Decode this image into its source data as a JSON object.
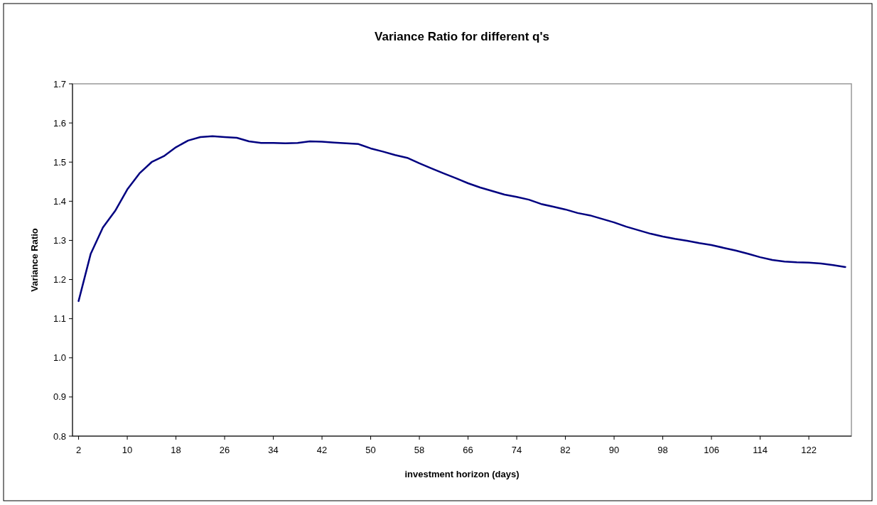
{
  "chart_data": {
    "type": "line",
    "title": "Variance Ratio for different q's",
    "xlabel": "investment horizon (days)",
    "ylabel": "Variance Ratio",
    "x": [
      2,
      4,
      6,
      8,
      10,
      12,
      14,
      16,
      18,
      20,
      22,
      24,
      26,
      28,
      30,
      32,
      34,
      36,
      38,
      40,
      42,
      44,
      46,
      48,
      50,
      52,
      54,
      56,
      58,
      60,
      62,
      64,
      66,
      68,
      70,
      72,
      74,
      76,
      78,
      80,
      82,
      84,
      86,
      88,
      90,
      92,
      94,
      96,
      98,
      100,
      102,
      104,
      106,
      108,
      110,
      112,
      114,
      116,
      118,
      120,
      122,
      124,
      126,
      128
    ],
    "series": [
      {
        "color": "#000080",
        "values": [
          1.145,
          1.266,
          1.333,
          1.375,
          1.43,
          1.471,
          1.5,
          1.515,
          1.538,
          1.555,
          1.564,
          1.566,
          1.564,
          1.562,
          1.553,
          1.549,
          1.549,
          1.548,
          1.549,
          1.553,
          1.552,
          1.55,
          1.548,
          1.546,
          1.535,
          1.527,
          1.518,
          1.511,
          1.497,
          1.484,
          1.471,
          1.459,
          1.446,
          1.435,
          1.426,
          1.417,
          1.411,
          1.404,
          1.393,
          1.386,
          1.379,
          1.37,
          1.364,
          1.355,
          1.346,
          1.335,
          1.326,
          1.317,
          1.31,
          1.304,
          1.299,
          1.293,
          1.288,
          1.281,
          1.274,
          1.266,
          1.257,
          1.25,
          1.246,
          1.244,
          1.243,
          1.241,
          1.237,
          1.232
        ]
      }
    ],
    "xlim": [
      1,
      129
    ],
    "xticks": [
      2,
      10,
      18,
      26,
      34,
      42,
      50,
      58,
      66,
      74,
      82,
      90,
      98,
      106,
      114,
      122
    ],
    "ylim": [
      0.8,
      1.7
    ],
    "yticks": [
      {
        "value": 0.8,
        "label": "0.8"
      },
      {
        "value": 0.9,
        "label": "0.9"
      },
      {
        "value": 1.0,
        "label": "1.0"
      },
      {
        "value": 1.1,
        "label": "1.1"
      },
      {
        "value": 1.2,
        "label": "1.2"
      },
      {
        "value": 1.3,
        "label": "1.3"
      },
      {
        "value": 1.4,
        "label": "1.4"
      },
      {
        "value": 1.5,
        "label": "1.5"
      },
      {
        "value": 1.6,
        "label": "1.6"
      },
      {
        "value": 1.7,
        "label": "1.7"
      }
    ],
    "grid": false,
    "marker": "none",
    "line_style": "solid"
  }
}
